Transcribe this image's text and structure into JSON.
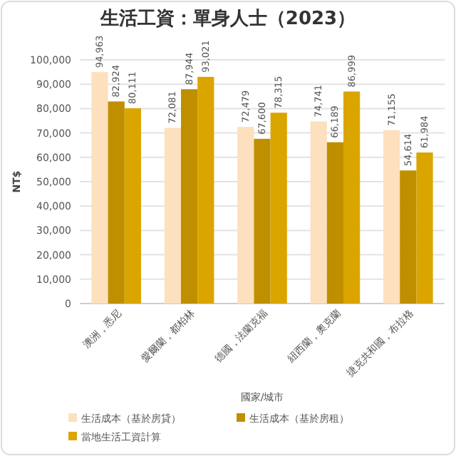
{
  "chart_data": {
    "type": "bar",
    "title": "生活工資：單身人士（2023）",
    "xlabel": "國家/城市",
    "ylabel": "NT$",
    "categories": [
      "澳洲，悉尼",
      "愛爾蘭，都柏林",
      "德國，法蘭克福",
      "紐西蘭，奧克蘭",
      "捷克共和國，布拉格"
    ],
    "series": [
      {
        "name": "生活成本（基於房貸）",
        "color": "#fde0bd",
        "values": [
          94963,
          72081,
          72479,
          74741,
          71155
        ],
        "value_labels": [
          "94,963",
          "72,081",
          "72,479",
          "74,741",
          "71,155"
        ]
      },
      {
        "name": "生活成本（基於房租）",
        "color": "#bf8f00",
        "values": [
          82924,
          87944,
          67600,
          66189,
          54614
        ],
        "value_labels": [
          "82,924",
          "87,944",
          "67,600",
          "66,189",
          "54,614"
        ]
      },
      {
        "name": "當地生活工資計算",
        "color": "#dba500",
        "values": [
          80111,
          93021,
          78315,
          86999,
          61984
        ],
        "value_labels": [
          "80,111",
          "93,021",
          "78,315",
          "86,999",
          "61,984"
        ]
      }
    ],
    "ylim": [
      0,
      100000
    ],
    "yticks": [
      {
        "value": 0,
        "label": "0"
      },
      {
        "value": 10000,
        "label": "10,000"
      },
      {
        "value": 20000,
        "label": "20,000"
      },
      {
        "value": 30000,
        "label": "30,000"
      },
      {
        "value": 40000,
        "label": "40,000"
      },
      {
        "value": 50000,
        "label": "50,000"
      },
      {
        "value": 60000,
        "label": "60,000"
      },
      {
        "value": 70000,
        "label": "70,000"
      },
      {
        "value": 80000,
        "label": "80,000"
      },
      {
        "value": 90000,
        "label": "90,000"
      },
      {
        "value": 100000,
        "label": "100,000"
      }
    ],
    "grid": "y",
    "legend": "bottom"
  }
}
